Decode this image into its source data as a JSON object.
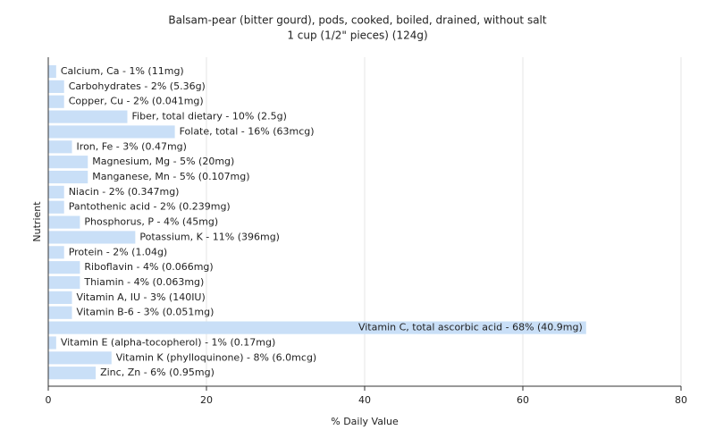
{
  "chart_data": {
    "type": "bar",
    "orientation": "horizontal",
    "title": "Balsam-pear (bitter gourd), pods, cooked, boiled, drained, without salt",
    "subtitle": "1 cup (1/2\" pieces) (124g)",
    "x_label": "% Daily Value",
    "y_label": "Nutrient",
    "values": [
      1,
      2,
      2,
      10,
      16,
      3,
      5,
      5,
      2,
      2,
      4,
      11,
      2,
      4,
      4,
      3,
      3,
      68,
      1,
      8,
      6
    ],
    "value_labels": [
      "Calcium, Ca - 1% (11mg)",
      "Carbohydrates - 2% (5.36g)",
      "Copper, Cu - 2% (0.041mg)",
      "Fiber, total dietary - 10% (2.5g)",
      "Folate, total - 16% (63mcg)",
      "Iron, Fe - 3% (0.47mg)",
      "Magnesium, Mg - 5% (20mg)",
      "Manganese, Mn - 5% (0.107mg)",
      "Niacin - 2% (0.347mg)",
      "Pantothenic acid - 2% (0.239mg)",
      "Phosphorus, P - 4% (45mg)",
      "Potassium, K - 11% (396mg)",
      "Protein - 2% (1.04g)",
      "Riboflavin - 4% (0.066mg)",
      "Thiamin - 4% (0.063mg)",
      "Vitamin A, IU - 3% (140IU)",
      "Vitamin B-6 - 3% (0.051mg)",
      "Vitamin C, total ascorbic acid - 68% (40.9mg)",
      "Vitamin E (alpha-tocopherol) - 1% (0.17mg)",
      "Vitamin K (phylloquinone) - 8% (6.0mcg)",
      "Zinc, Zn - 6% (0.95mg)"
    ],
    "color": "#c9dff7",
    "xlim": [
      0,
      80
    ],
    "xticks": [
      0,
      20,
      40,
      60,
      80
    ],
    "grid": true
  }
}
